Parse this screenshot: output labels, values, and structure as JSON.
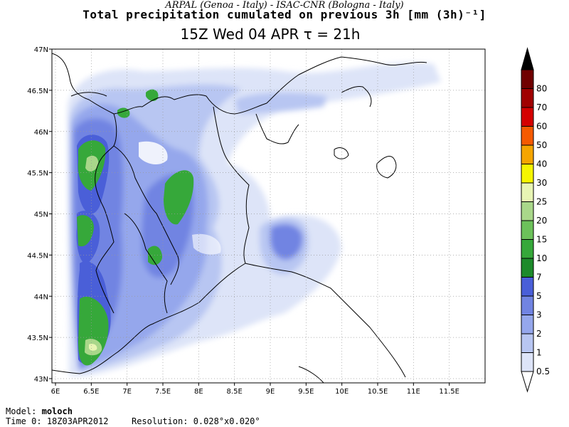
{
  "header": {
    "credits": "ARPAL (Genoa - Italy)  -  ISAC-CNR (Bologna - Italy)",
    "title": "Total precipitation cumulated on previous 3h [mm (3h)⁻¹]",
    "subtitle": "15Z Wed 04 APR  τ = 21h"
  },
  "axes": {
    "lon_ticks": [
      "6E",
      "6.5E",
      "7E",
      "7.5E",
      "8E",
      "8.5E",
      "9E",
      "9.5E",
      "10E",
      "10.5E",
      "11E",
      "11.5E"
    ],
    "lat_ticks": [
      "43N",
      "43.5N",
      "44N",
      "44.5N",
      "45N",
      "45.5N",
      "46N",
      "46.5N",
      "47N"
    ],
    "lon_range": [
      6,
      11.5
    ],
    "lat_range": [
      43,
      47
    ],
    "grid": true
  },
  "colorbar": {
    "levels": [
      "0.5",
      "1",
      "2",
      "3",
      "5",
      "7",
      "10",
      "15",
      "20",
      "25",
      "30",
      "40",
      "50",
      "60",
      "70",
      "80"
    ],
    "colors": [
      "#ffffff",
      "#dde4f8",
      "#b8c6f2",
      "#95a7ec",
      "#7184e2",
      "#4a5fd8",
      "#1d8a2a",
      "#36a83a",
      "#6cc15a",
      "#a9d78a",
      "#e8f5b4",
      "#f5f500",
      "#f5a500",
      "#f55a00",
      "#d40000",
      "#a00000",
      "#700000",
      "#000000"
    ]
  },
  "footer": {
    "model_label": "Model:",
    "model_value": "moloch",
    "time_label": "Time 0:",
    "time_value": "18Z03APR2012",
    "resolution_label": "Resolution:",
    "resolution_value": "0.028°x0.020°"
  }
}
